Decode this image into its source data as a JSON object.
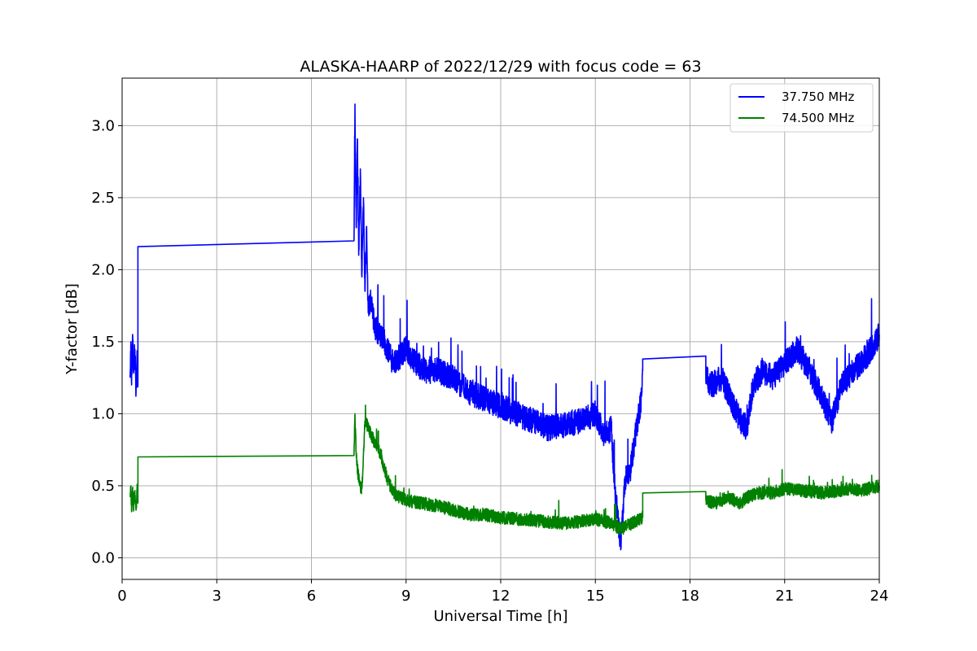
{
  "chart_data": {
    "type": "line",
    "title": "ALASKA-HAARP of 2022/12/29 with focus code = 63",
    "xlabel": "Universal Time [h]",
    "ylabel": "Y-factor [dB]",
    "xlim": [
      0,
      24
    ],
    "ylim": [
      -0.15,
      3.33
    ],
    "xticks": [
      0,
      3,
      6,
      9,
      12,
      15,
      18,
      21,
      24
    ],
    "xtick_labels": [
      "0",
      "3",
      "6",
      "9",
      "12",
      "15",
      "18",
      "21",
      "24"
    ],
    "yticks": [
      0.0,
      0.5,
      1.0,
      1.5,
      2.0,
      2.5,
      3.0
    ],
    "ytick_labels": [
      "0.0",
      "0.5",
      "1.0",
      "1.5",
      "2.0",
      "2.5",
      "3.0"
    ],
    "grid": true,
    "legend_position": "top-right",
    "series": [
      {
        "name": "37.750 MHz",
        "color": "#0000ff",
        "x": [
          0.25,
          0.28,
          0.3,
          0.33,
          0.36,
          0.4,
          0.44,
          0.48,
          0.5,
          0.5,
          7.35,
          7.38,
          7.42,
          7.46,
          7.5,
          7.55,
          7.6,
          7.65,
          7.7,
          7.75,
          7.8,
          7.9,
          8.0,
          8.2,
          8.4,
          8.6,
          8.8,
          9.0,
          9.3,
          9.6,
          10.0,
          10.5,
          11.0,
          11.5,
          12.0,
          12.5,
          13.0,
          13.5,
          14.0,
          14.5,
          15.0,
          15.3,
          15.5,
          15.65,
          15.8,
          15.95,
          16.1,
          16.3,
          16.45,
          16.5,
          16.5,
          18.5,
          18.5,
          18.7,
          19.0,
          19.3,
          19.6,
          19.8,
          20.0,
          20.3,
          20.6,
          21.0,
          21.4,
          21.8,
          22.2,
          22.5,
          22.8,
          23.2,
          23.6,
          24.0
        ],
        "values": [
          1.25,
          1.5,
          1.2,
          1.55,
          1.3,
          1.45,
          1.15,
          1.4,
          1.2,
          2.16,
          2.2,
          3.15,
          2.3,
          2.9,
          2.1,
          2.7,
          1.95,
          2.5,
          1.85,
          2.3,
          1.7,
          1.8,
          1.6,
          1.55,
          1.45,
          1.35,
          1.4,
          1.45,
          1.35,
          1.3,
          1.3,
          1.25,
          1.15,
          1.1,
          1.05,
          1.0,
          0.95,
          0.9,
          0.92,
          0.95,
          1.0,
          0.85,
          0.9,
          0.4,
          0.1,
          0.55,
          0.6,
          0.9,
          1.1,
          1.3,
          1.38,
          1.4,
          1.25,
          1.2,
          1.25,
          1.1,
          0.95,
          0.9,
          1.2,
          1.3,
          1.25,
          1.35,
          1.45,
          1.3,
          1.1,
          0.95,
          1.2,
          1.3,
          1.4,
          1.55
        ]
      },
      {
        "name": "74.500 MHz",
        "color": "#008000",
        "x": [
          0.25,
          0.28,
          0.3,
          0.33,
          0.36,
          0.4,
          0.44,
          0.48,
          0.5,
          0.5,
          7.35,
          7.38,
          7.42,
          7.46,
          7.5,
          7.55,
          7.6,
          7.7,
          7.8,
          7.9,
          8.0,
          8.2,
          8.4,
          8.6,
          8.8,
          9.0,
          9.5,
          10.0,
          10.5,
          11.0,
          11.5,
          12.0,
          12.5,
          13.0,
          13.5,
          14.0,
          14.5,
          15.0,
          15.5,
          15.8,
          16.0,
          16.3,
          16.5,
          16.5,
          18.5,
          18.5,
          18.8,
          19.2,
          19.6,
          19.8,
          20.2,
          20.6,
          21.0,
          21.4,
          21.8,
          22.2,
          22.6,
          23.0,
          23.5,
          24.0
        ],
        "values": [
          0.42,
          0.5,
          0.32,
          0.48,
          0.35,
          0.45,
          0.33,
          0.5,
          0.38,
          0.7,
          0.71,
          1.0,
          0.72,
          0.62,
          0.55,
          0.5,
          0.48,
          0.95,
          0.9,
          0.85,
          0.8,
          0.72,
          0.55,
          0.45,
          0.42,
          0.4,
          0.38,
          0.36,
          0.33,
          0.3,
          0.3,
          0.28,
          0.27,
          0.26,
          0.25,
          0.24,
          0.25,
          0.27,
          0.24,
          0.2,
          0.22,
          0.26,
          0.28,
          0.45,
          0.46,
          0.4,
          0.38,
          0.42,
          0.38,
          0.42,
          0.45,
          0.45,
          0.48,
          0.47,
          0.46,
          0.45,
          0.46,
          0.48,
          0.47,
          0.5
        ]
      }
    ]
  }
}
